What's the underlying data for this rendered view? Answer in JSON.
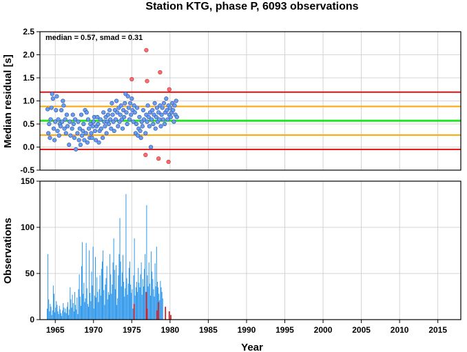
{
  "chart_data": [
    {
      "type": "scatter",
      "title": "Station KTG, phase P, 6093 observations",
      "ylabel": "Median residual [s]",
      "xlim": [
        1963,
        2018
      ],
      "ylim": [
        -0.5,
        2.5
      ],
      "yticks": [
        "2.5",
        "2.0",
        "1.5",
        "1.0",
        "0.5",
        "0.0",
        "-0.5"
      ],
      "annotation": "median = 0.57, smad = 0.31",
      "grid": true,
      "reference_lines": [
        {
          "y": 0.57,
          "color": "#22e622"
        },
        {
          "y": 0.26,
          "color": "#ffa500"
        },
        {
          "y": 0.88,
          "color": "#ffa500"
        },
        {
          "y": -0.05,
          "color": "#e01010"
        },
        {
          "y": 1.19,
          "color": "#e01010"
        }
      ],
      "series": [
        {
          "color": "#6a9cf0",
          "points": [
            [
              1964.0,
              0.82
            ],
            [
              1964.1,
              0.3
            ],
            [
              1964.2,
              0.5
            ],
            [
              1964.3,
              0.2
            ],
            [
              1964.4,
              0.6
            ],
            [
              1964.5,
              0.85
            ],
            [
              1964.6,
              1.15
            ],
            [
              1964.7,
              1.05
            ],
            [
              1964.8,
              0.4
            ],
            [
              1964.9,
              0.15
            ],
            [
              1965.0,
              0.55
            ],
            [
              1965.1,
              0.8
            ],
            [
              1965.2,
              1.1
            ],
            [
              1965.3,
              0.35
            ],
            [
              1965.4,
              0.6
            ],
            [
              1965.5,
              0.25
            ],
            [
              1965.6,
              0.5
            ],
            [
              1965.7,
              0.45
            ],
            [
              1965.8,
              0.8
            ],
            [
              1965.9,
              0.55
            ],
            [
              1966.0,
              1.0
            ],
            [
              1966.1,
              0.9
            ],
            [
              1966.2,
              0.4
            ],
            [
              1966.3,
              0.6
            ],
            [
              1966.4,
              0.3
            ],
            [
              1966.5,
              0.7
            ],
            [
              1966.6,
              0.45
            ],
            [
              1966.8,
              0.05
            ],
            [
              1966.9,
              0.55
            ],
            [
              1967.0,
              0.25
            ],
            [
              1967.2,
              0.4
            ],
            [
              1967.3,
              0.7
            ],
            [
              1967.4,
              0.5
            ],
            [
              1967.5,
              0.2
            ],
            [
              1967.6,
              0.6
            ],
            [
              1967.7,
              -0.05
            ],
            [
              1967.9,
              0.3
            ],
            [
              1968.0,
              0.55
            ],
            [
              1968.1,
              0.15
            ],
            [
              1968.2,
              0.4
            ],
            [
              1968.3,
              0.05
            ],
            [
              1968.4,
              0.7
            ],
            [
              1968.5,
              0.25
            ],
            [
              1968.6,
              0.35
            ],
            [
              1968.7,
              0.5
            ],
            [
              1968.8,
              0.15
            ],
            [
              1968.9,
              0.8
            ],
            [
              1969.0,
              0.3
            ],
            [
              1969.1,
              0.75
            ],
            [
              1969.2,
              0.1
            ],
            [
              1969.3,
              0.6
            ],
            [
              1969.4,
              0.4
            ],
            [
              1969.5,
              0.2
            ],
            [
              1969.6,
              0.5
            ],
            [
              1969.7,
              0.3
            ],
            [
              1969.8,
              0.2
            ],
            [
              1969.9,
              0.45
            ],
            [
              1970.0,
              0.55
            ],
            [
              1970.1,
              0.65
            ],
            [
              1970.2,
              0.35
            ],
            [
              1970.3,
              0.15
            ],
            [
              1970.4,
              0.45
            ],
            [
              1970.5,
              0.65
            ],
            [
              1970.6,
              0.5
            ],
            [
              1970.7,
              0.1
            ],
            [
              1970.8,
              0.35
            ],
            [
              1970.9,
              0.6
            ],
            [
              1971.0,
              0.4
            ],
            [
              1971.2,
              0.2
            ],
            [
              1971.3,
              0.75
            ],
            [
              1971.4,
              0.55
            ],
            [
              1971.5,
              0.45
            ],
            [
              1971.6,
              0.65
            ],
            [
              1971.7,
              0.3
            ],
            [
              1971.8,
              0.55
            ],
            [
              1971.9,
              0.7
            ],
            [
              1972.0,
              0.5
            ],
            [
              1972.1,
              0.8
            ],
            [
              1972.2,
              0.6
            ],
            [
              1972.3,
              0.4
            ],
            [
              1972.4,
              0.95
            ],
            [
              1972.5,
              0.7
            ],
            [
              1972.6,
              0.55
            ],
            [
              1972.7,
              0.35
            ],
            [
              1972.8,
              0.8
            ],
            [
              1972.9,
              0.6
            ],
            [
              1973.0,
              1.0
            ],
            [
              1973.1,
              0.75
            ],
            [
              1973.2,
              0.45
            ],
            [
              1973.3,
              0.85
            ],
            [
              1973.4,
              0.55
            ],
            [
              1973.5,
              0.7
            ],
            [
              1973.6,
              0.9
            ],
            [
              1973.7,
              0.6
            ],
            [
              1973.8,
              0.4
            ],
            [
              1973.9,
              0.8
            ],
            [
              1974.0,
              0.65
            ],
            [
              1974.1,
              0.95
            ],
            [
              1974.2,
              1.15
            ],
            [
              1974.3,
              0.75
            ],
            [
              1974.4,
              0.5
            ],
            [
              1974.5,
              1.1
            ],
            [
              1974.6,
              0.85
            ],
            [
              1974.7,
              0.6
            ],
            [
              1974.8,
              0.95
            ],
            [
              1974.9,
              0.7
            ],
            [
              1975.0,
              1.05
            ],
            [
              1975.1,
              0.8
            ],
            [
              1975.2,
              0.55
            ],
            [
              1975.3,
              0.9
            ],
            [
              1975.4,
              0.75
            ],
            [
              1975.5,
              0.3
            ],
            [
              1975.6,
              0.5
            ],
            [
              1975.7,
              0.85
            ],
            [
              1975.8,
              0.25
            ],
            [
              1975.9,
              0.4
            ],
            [
              1976.0,
              0.65
            ],
            [
              1976.1,
              0.35
            ],
            [
              1976.2,
              0.2
            ],
            [
              1976.3,
              0.55
            ],
            [
              1976.4,
              0.45
            ],
            [
              1976.5,
              0.8
            ],
            [
              1976.6,
              0.6
            ],
            [
              1976.8,
              0.3
            ],
            [
              1976.9,
              0.7
            ],
            [
              1977.0,
              0.55
            ],
            [
              1977.1,
              0.9
            ],
            [
              1977.2,
              0.65
            ],
            [
              1977.3,
              0.45
            ],
            [
              1977.4,
              0.75
            ],
            [
              1977.5,
              0.0
            ],
            [
              1977.6,
              0.6
            ],
            [
              1977.7,
              0.8
            ],
            [
              1977.8,
              0.5
            ],
            [
              1977.9,
              0.7
            ],
            [
              1978.0,
              0.95
            ],
            [
              1978.1,
              0.4
            ],
            [
              1978.2,
              0.65
            ],
            [
              1978.3,
              0.85
            ],
            [
              1978.4,
              0.55
            ],
            [
              1978.5,
              0.75
            ],
            [
              1978.6,
              0.6
            ],
            [
              1978.7,
              0.9
            ],
            [
              1978.8,
              0.45
            ],
            [
              1978.9,
              0.7
            ],
            [
              1979.0,
              0.85
            ],
            [
              1979.1,
              0.6
            ],
            [
              1979.2,
              0.95
            ],
            [
              1979.3,
              0.5
            ],
            [
              1979.4,
              0.75
            ],
            [
              1979.5,
              1.05
            ],
            [
              1979.6,
              0.8
            ],
            [
              1979.7,
              0.6
            ],
            [
              1979.8,
              0.9
            ],
            [
              1979.9,
              0.7
            ],
            [
              1980.0,
              0.85
            ],
            [
              1980.1,
              0.65
            ],
            [
              1980.2,
              0.75
            ],
            [
              1980.3,
              0.95
            ],
            [
              1980.4,
              0.8
            ],
            [
              1980.5,
              0.55
            ],
            [
              1980.6,
              0.9
            ],
            [
              1980.7,
              0.7
            ],
            [
              1980.8,
              1.0
            ],
            [
              1980.9,
              0.65
            ]
          ]
        },
        {
          "color": "#ff6b6b",
          "points": [
            [
              1975.0,
              1.47
            ],
            [
              1976.8,
              -0.17
            ],
            [
              1976.9,
              2.1
            ],
            [
              1977.0,
              1.43
            ],
            [
              1978.5,
              -0.25
            ],
            [
              1978.7,
              1.62
            ],
            [
              1979.8,
              -0.32
            ],
            [
              1979.9,
              1.25
            ]
          ]
        }
      ]
    },
    {
      "type": "bar",
      "xlabel": "Year",
      "ylabel": "Observations",
      "xlim": [
        1963,
        2018
      ],
      "ylim": [
        0,
        150
      ],
      "yticks": [
        "150",
        "100",
        "50",
        "0"
      ],
      "xticks": [
        "1965",
        "1970",
        "1975",
        "1980",
        "1985",
        "1990",
        "1995",
        "2000",
        "2005",
        "2010",
        "2015"
      ],
      "grid": true,
      "series": [
        {
          "color": "#2e97ea",
          "x_start": 1963.95,
          "x_step": 0.1,
          "values": [
            12,
            71,
            22,
            9,
            17,
            14,
            5,
            10,
            37,
            28,
            8,
            13,
            20,
            16,
            9,
            6,
            15,
            11,
            7,
            4,
            10,
            18,
            13,
            8,
            12,
            7,
            14,
            19,
            5,
            11,
            35,
            22,
            13,
            27,
            18,
            9,
            30,
            16,
            11,
            24,
            6,
            33,
            49,
            25,
            15,
            58,
            84,
            28,
            40,
            19,
            23,
            83,
            34,
            17,
            14,
            75,
            29,
            20,
            52,
            37,
            79,
            12,
            26,
            68,
            24,
            46,
            30,
            19,
            33,
            48,
            26,
            55,
            63,
            75,
            32,
            16,
            38,
            45,
            58,
            22,
            30,
            27,
            71,
            49,
            28,
            38,
            62,
            88,
            54,
            33,
            59,
            16,
            23,
            48,
            71,
            110,
            63,
            36,
            51,
            70,
            41,
            25,
            34,
            136,
            45,
            27,
            39,
            56,
            63,
            38,
            29,
            33,
            12,
            48,
            88,
            26,
            35,
            41,
            30,
            56,
            40,
            35,
            49,
            62,
            27,
            44,
            36,
            55,
            71,
            30,
            124,
            48,
            36,
            62,
            39,
            26,
            74,
            52,
            44,
            33,
            25,
            61,
            36,
            79,
            41,
            35,
            28,
            21,
            42,
            35,
            30,
            23
          ]
        },
        {
          "color": "#d0202a",
          "bars": [
            [
              1975.3,
              17
            ],
            [
              1976.9,
              30
            ],
            [
              1977.0,
              12
            ],
            [
              1978.3,
              10
            ],
            [
              1978.5,
              19
            ],
            [
              1979.4,
              14
            ],
            [
              1979.9,
              9
            ],
            [
              1980.1,
              5
            ]
          ]
        }
      ]
    }
  ]
}
